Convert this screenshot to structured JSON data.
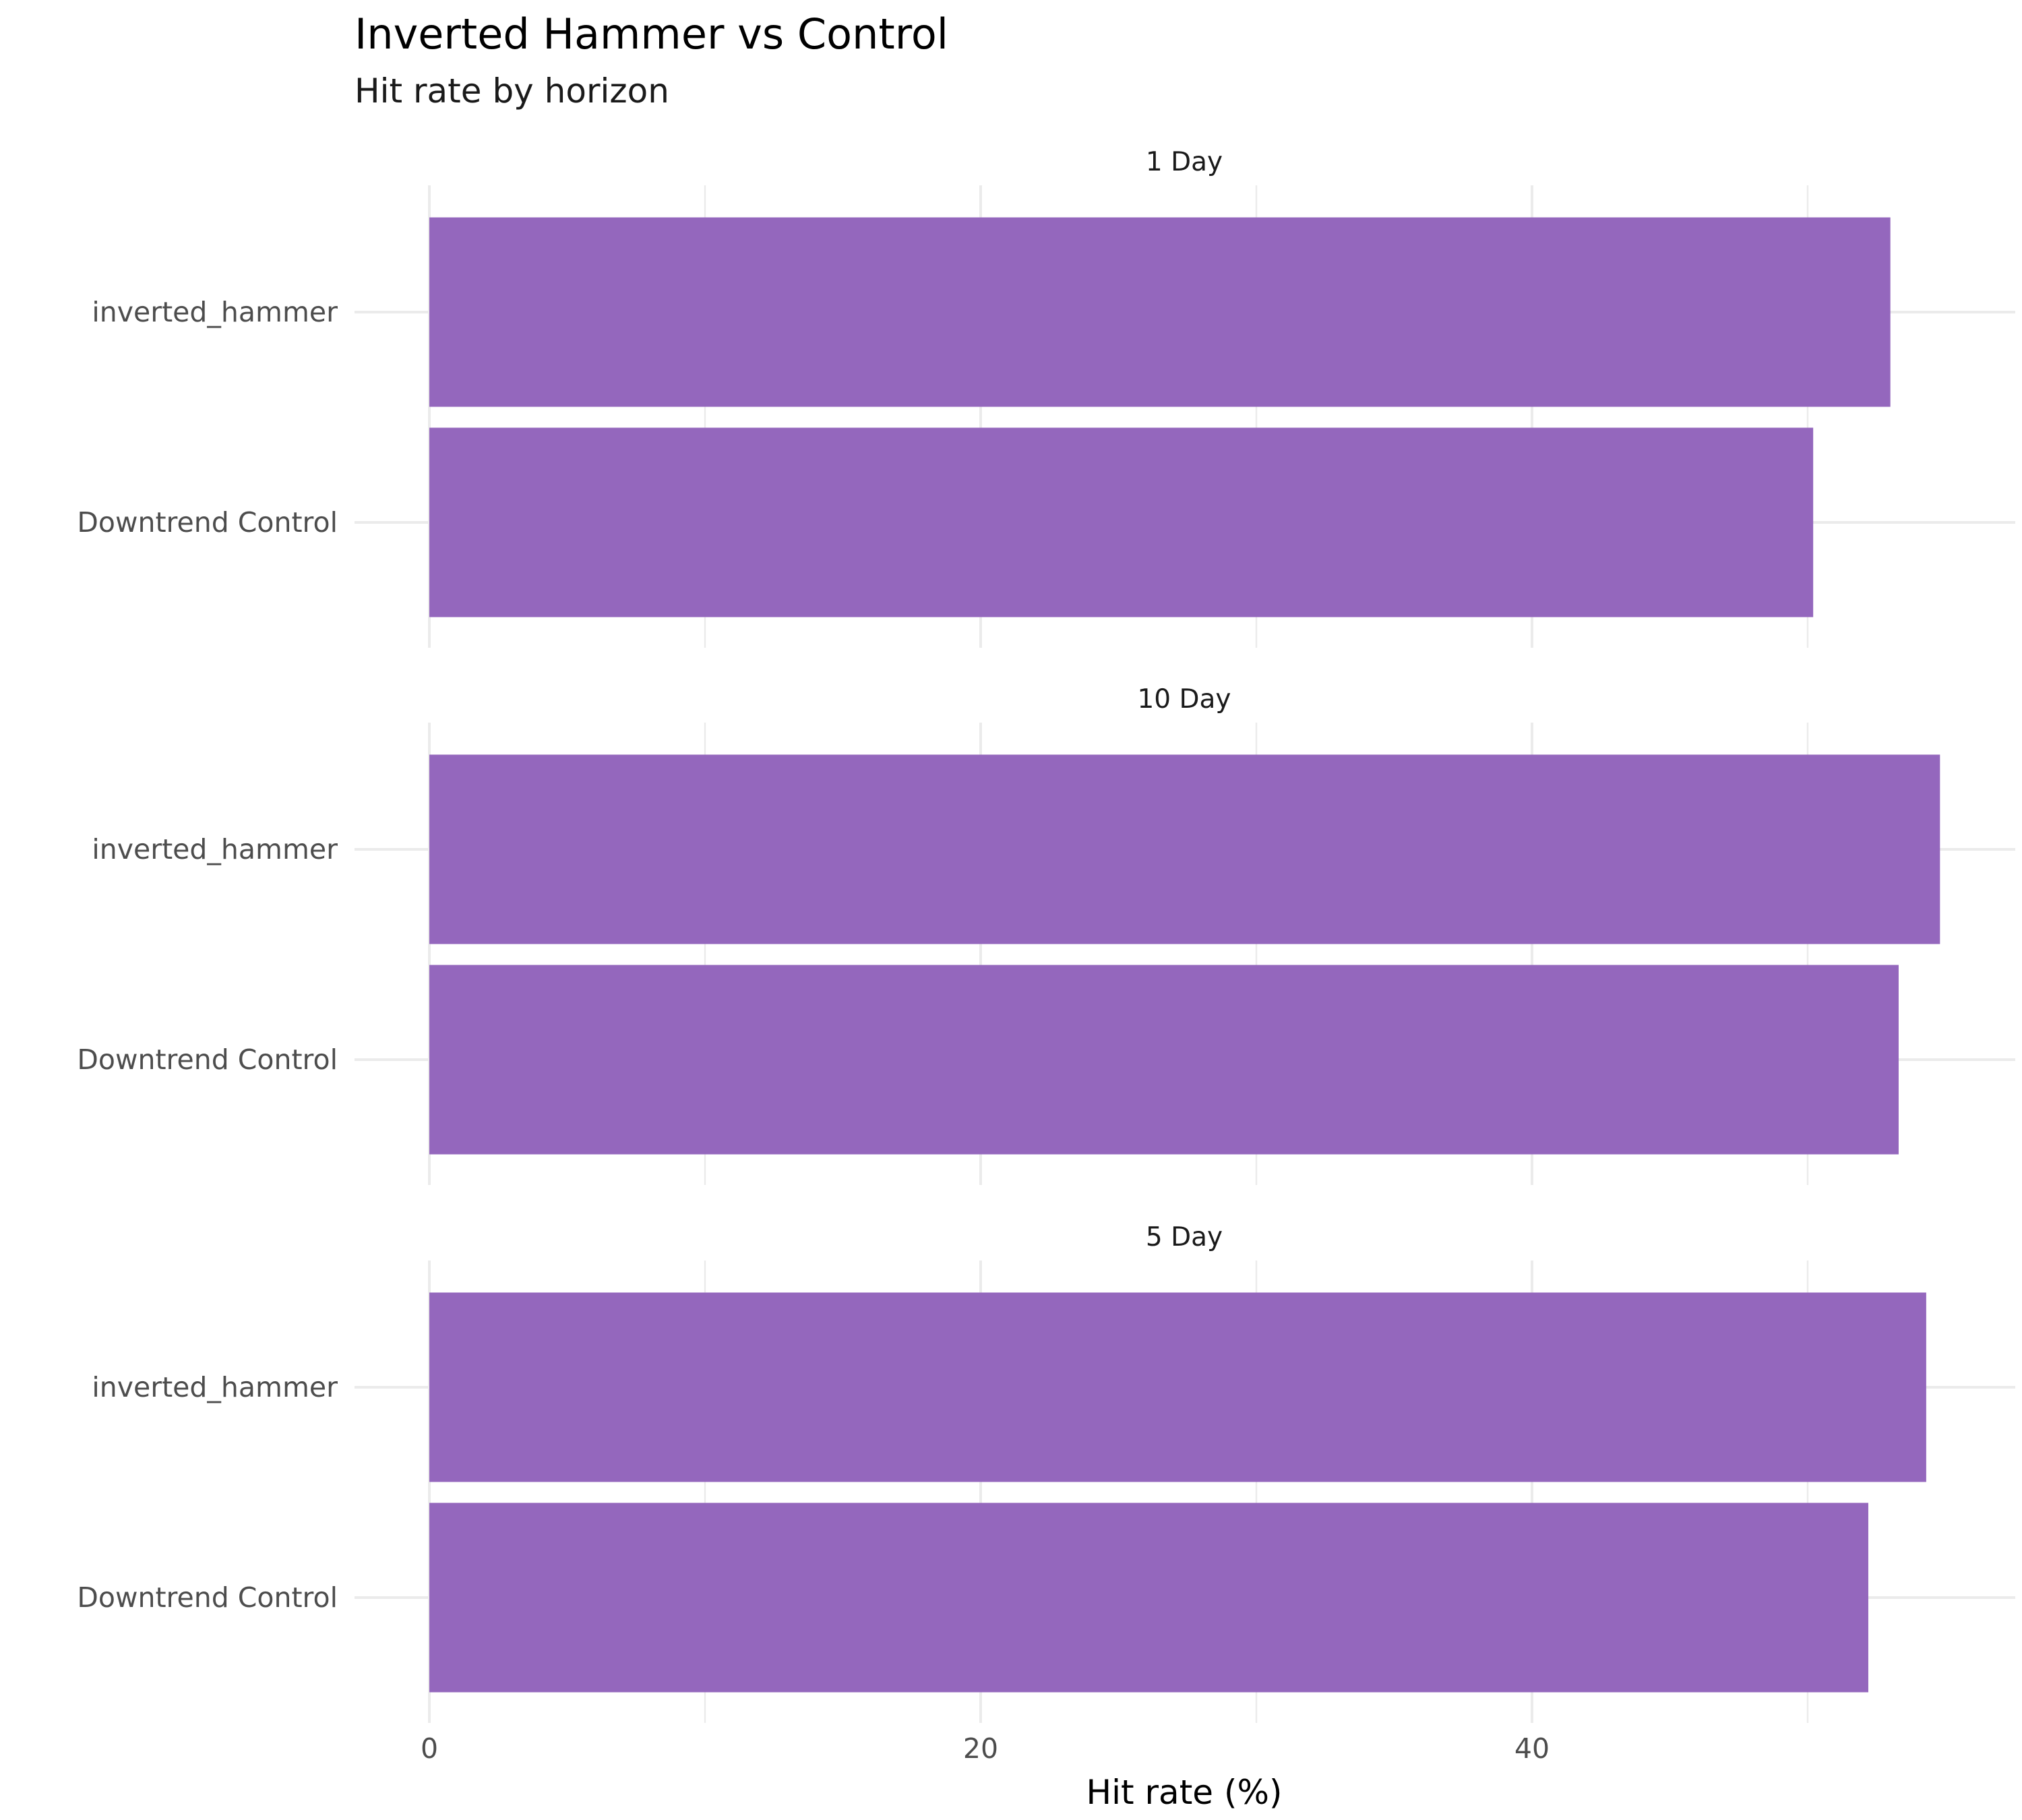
{
  "chart_data": {
    "type": "bar",
    "orientation": "horizontal",
    "title": "Inverted Hammer vs Control",
    "subtitle": "Hit rate by horizon",
    "xlabel": "Hit rate (%)",
    "ylabel": "",
    "xlim": [
      0,
      57.5
    ],
    "xticks": [
      0,
      20,
      40
    ],
    "categories": [
      "inverted_hammer",
      "Downtrend Control"
    ],
    "bar_color": "#9467bd",
    "grid": true,
    "legend": "none",
    "panels": [
      {
        "name": "1 Day",
        "values": [
          53.0,
          50.2
        ]
      },
      {
        "name": "10 Day",
        "values": [
          54.8,
          53.3
        ]
      },
      {
        "name": "5 Day",
        "values": [
          54.3,
          52.2
        ]
      }
    ]
  }
}
